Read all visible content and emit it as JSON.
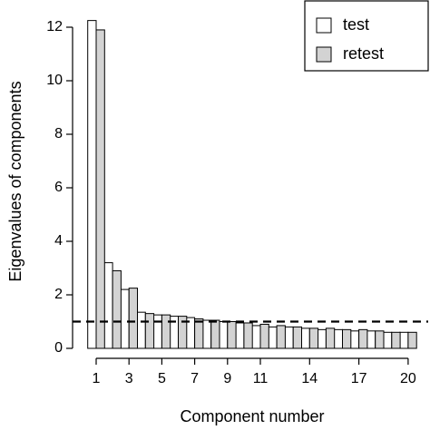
{
  "chart_data": {
    "type": "bar",
    "x_label": "Component number",
    "y_label": "Eigenvalues of components",
    "categories": [
      "1",
      null,
      "3",
      null,
      "5",
      null,
      "7",
      null,
      "9",
      null,
      "11",
      null,
      null,
      "14",
      null,
      null,
      "17",
      null,
      null,
      "20"
    ],
    "series": [
      {
        "name": "test",
        "color": "#ffffff",
        "values": [
          12.25,
          3.2,
          2.2,
          1.35,
          1.25,
          1.2,
          1.15,
          1.05,
          1.0,
          0.95,
          0.85,
          0.8,
          0.8,
          0.75,
          0.7,
          0.7,
          0.65,
          0.65,
          0.6,
          0.6
        ]
      },
      {
        "name": "retest",
        "color": "#d3d3d3",
        "values": [
          11.9,
          2.9,
          2.25,
          1.3,
          1.25,
          1.2,
          1.1,
          1.05,
          1.0,
          0.95,
          0.9,
          0.85,
          0.8,
          0.75,
          0.75,
          0.7,
          0.7,
          0.65,
          0.6,
          0.6
        ]
      }
    ],
    "reference_line": 1,
    "ylim": [
      0,
      12
    ],
    "yticks": [
      0,
      2,
      4,
      6,
      8,
      10,
      12
    ],
    "legend": "top-right"
  }
}
